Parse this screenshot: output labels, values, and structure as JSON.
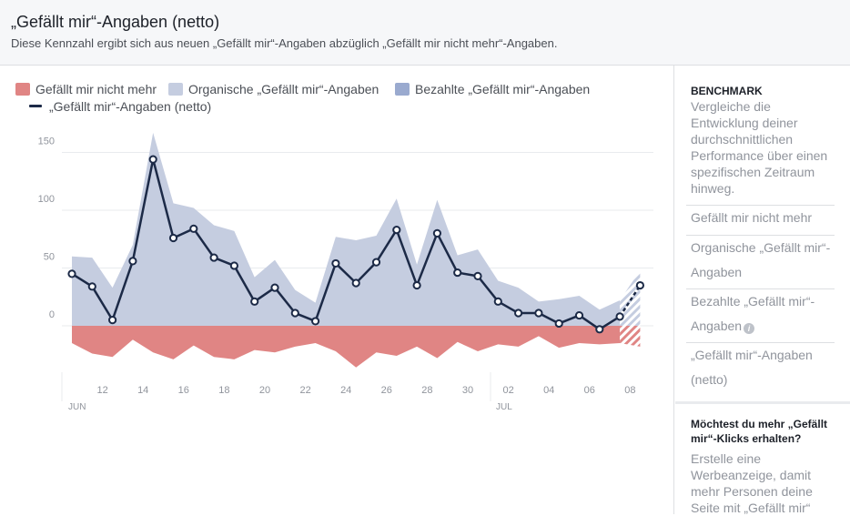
{
  "header": {
    "title": "„Gefällt mir“-Angaben (netto)",
    "subtitle": "Diese Kennzahl ergibt sich aus neuen „Gefällt mir“-Angaben abzüglich „Gefällt mir nicht mehr“-Angaben."
  },
  "legend": {
    "unlikes": "Gefällt mir nicht mehr",
    "organic": "Organische „Gefällt mir“-Angaben",
    "paid": "Bezahlte „Gefällt mir“-Angaben",
    "net": "„Gefällt mir“-Angaben (netto)"
  },
  "colors": {
    "unlikes": "#e08584",
    "organic": "#c5cde0",
    "paid": "#9aaacf",
    "net": "#1c2a47",
    "grid": "#e9ebee",
    "axis_text": "#90949c"
  },
  "sidebar": {
    "benchmark_title": "BENCHMARK",
    "benchmark_desc": "Vergleiche die Entwicklung deiner durchschnittlichen Performance über einen spezifischen Zeitraum hinweg.",
    "items": [
      "Gefällt mir nicht mehr",
      "Organische „Gefällt mir“-Angaben",
      "Bezahlte „Gefällt mir“-Angaben",
      "„Gefällt mir“-Angaben (netto)"
    ],
    "info_icon": "info-icon",
    "promo_title": "Möchtest du mehr „Gefällt mir“-Klicks erhalten?",
    "promo_desc": "Erstelle eine Werbeanzeige, damit mehr Personen deine Seite mit „Gefällt mir“"
  },
  "chart_data": {
    "type": "area",
    "x": [
      "10.06",
      "11.06",
      "12.06",
      "13.06",
      "14.06",
      "15.06",
      "16.06",
      "17.06",
      "18.06",
      "19.06",
      "20.06",
      "21.06",
      "22.06",
      "23.06",
      "24.06",
      "25.06",
      "26.06",
      "27.06",
      "28.06",
      "29.06",
      "30.06",
      "01.07",
      "02.07",
      "03.07",
      "04.07",
      "05.07",
      "06.07",
      "07.07",
      "08.07"
    ],
    "x_ticks": [
      "12",
      "14",
      "16",
      "18",
      "20",
      "22",
      "24",
      "26",
      "28",
      "30",
      "02",
      "04",
      "06",
      "08"
    ],
    "x_month_labels": [
      "JUN",
      "JUL"
    ],
    "y_ticks": [
      0,
      50,
      100,
      150
    ],
    "ylim": [
      -45,
      175
    ],
    "series": [
      {
        "name": "Organische „Gefällt mir“-Angaben",
        "values": [
          60,
          59,
          33,
          70,
          167,
          106,
          102,
          87,
          82,
          42,
          57,
          31,
          20,
          77,
          74,
          78,
          110,
          53,
          109,
          61,
          66,
          39,
          33,
          21,
          23,
          26,
          14,
          22,
          48
        ]
      },
      {
        "name": "Gefällt mir nicht mehr",
        "values": [
          -15,
          -24,
          -27,
          -12,
          -23,
          -29,
          -17,
          -27,
          -29,
          -21,
          -23,
          -18,
          -15,
          -22,
          -36,
          -23,
          -26,
          -18,
          -28,
          -14,
          -22,
          -16,
          -18,
          -9,
          -19,
          -15,
          -16,
          -15,
          -18
        ]
      },
      {
        "name": "„Gefällt mir“-Angaben (netto)",
        "values": [
          45,
          34,
          5,
          56,
          144,
          76,
          84,
          59,
          52,
          21,
          33,
          11,
          4,
          54,
          37,
          55,
          83,
          35,
          80,
          46,
          43,
          21,
          11,
          11,
          2,
          9,
          -3,
          8,
          35
        ]
      }
    ],
    "partial_last_point": true,
    "grid": true
  }
}
